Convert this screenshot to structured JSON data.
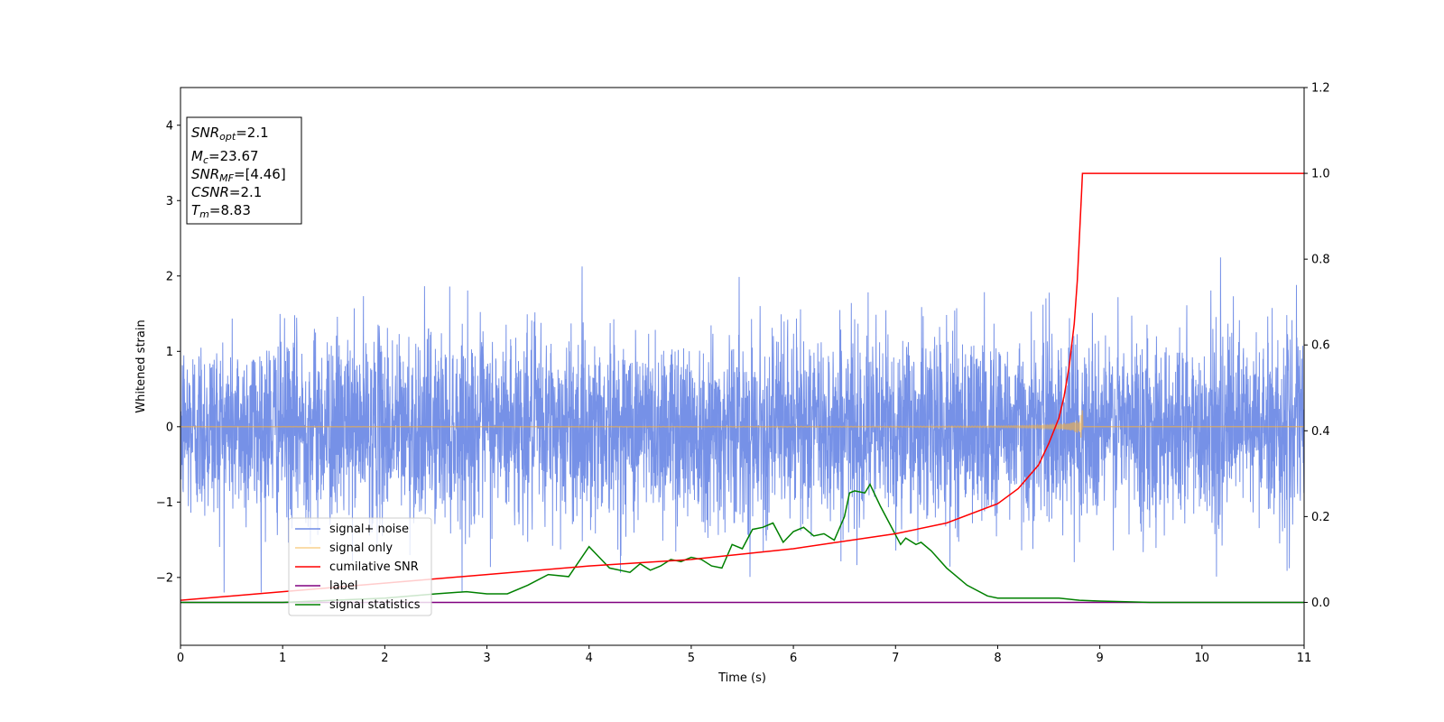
{
  "chart_data": {
    "type": "line",
    "xlabel": "Time (s)",
    "ylabel": "Whitened strain",
    "xlim": [
      0,
      11
    ],
    "ylim": [
      -2.9,
      4.5
    ],
    "y2lim": [
      -0.1,
      1.2
    ],
    "x_ticks": [
      0,
      1,
      2,
      3,
      4,
      5,
      6,
      7,
      8,
      9,
      10,
      11
    ],
    "y_ticks": [
      -2,
      -1,
      0,
      1,
      2,
      3,
      4
    ],
    "y2_ticks": [
      0.0,
      0.2,
      0.4,
      0.6,
      0.8,
      1.0,
      1.2
    ],
    "x_tick_labels": [
      "0",
      "1",
      "2",
      "3",
      "4",
      "5",
      "6",
      "7",
      "8",
      "9",
      "10",
      "11"
    ],
    "y_tick_labels": [
      "−2",
      "−1",
      "0",
      "1",
      "2",
      "3",
      "4"
    ],
    "y2_tick_labels": [
      "0.0",
      "0.2",
      "0.4",
      "0.6",
      "0.8",
      "1.0",
      "1.2"
    ],
    "grid": false,
    "legend_position": "lower-left",
    "colors": {
      "noise": "#6f8be6",
      "signal": "#f5b041",
      "cumulative": "#ff0000",
      "label": "#800080",
      "statistics": "#008000"
    },
    "annotation": {
      "snr_opt": {
        "sym": "SNR",
        "sub": "opt",
        "value": "=2.1"
      },
      "mc": {
        "sym": "M",
        "sub": "c",
        "value": "=23.67"
      },
      "snr_mf": {
        "sym": "SNR",
        "sub": "MF",
        "value": "=[4.46]"
      },
      "csnr": {
        "sym": "CSNR",
        "sub": "",
        "value": "=2.1"
      },
      "tm": {
        "sym": "T",
        "sub": "m",
        "value": "=8.83"
      }
    },
    "series": [
      {
        "name": "signal+ noise",
        "axis": "left",
        "description_range": [
          -2.2,
          2.25
        ],
        "std": 0.62
      },
      {
        "name": "signal only",
        "axis": "left",
        "merger_time": 8.83,
        "peak_amplitude": 0.28
      },
      {
        "name": "cumilative SNR",
        "axis": "right",
        "x": [
          0,
          1,
          2,
          3,
          4,
          5,
          6,
          7,
          7.5,
          8,
          8.2,
          8.4,
          8.5,
          8.6,
          8.65,
          8.7,
          8.75,
          8.78,
          8.8,
          8.82,
          8.83,
          8.84,
          11
        ],
        "y": [
          0.005,
          0.025,
          0.045,
          0.065,
          0.085,
          0.1,
          0.125,
          0.16,
          0.185,
          0.23,
          0.265,
          0.32,
          0.37,
          0.43,
          0.48,
          0.55,
          0.65,
          0.75,
          0.85,
          0.95,
          1.0,
          1.0,
          1.0
        ]
      },
      {
        "name": "label",
        "axis": "right",
        "x": [
          0,
          11
        ],
        "y": [
          0,
          0
        ]
      },
      {
        "name": "signal statistics",
        "axis": "right",
        "x": [
          0,
          0.5,
          1,
          1.5,
          2,
          2.5,
          2.8,
          3.0,
          3.2,
          3.4,
          3.6,
          3.8,
          3.9,
          4.0,
          4.1,
          4.2,
          4.4,
          4.5,
          4.6,
          4.7,
          4.8,
          4.9,
          5.0,
          5.1,
          5.2,
          5.3,
          5.4,
          5.5,
          5.6,
          5.7,
          5.8,
          5.9,
          6.0,
          6.1,
          6.2,
          6.3,
          6.4,
          6.5,
          6.55,
          6.6,
          6.7,
          6.75,
          6.85,
          6.95,
          7.05,
          7.1,
          7.2,
          7.25,
          7.35,
          7.5,
          7.7,
          7.9,
          8.0,
          8.2,
          8.4,
          8.6,
          8.8,
          9.0,
          9.5,
          10,
          11
        ],
        "y": [
          0.0,
          0.0,
          0.0,
          0.005,
          0.01,
          0.02,
          0.025,
          0.02,
          0.02,
          0.04,
          0.065,
          0.06,
          0.095,
          0.13,
          0.105,
          0.08,
          0.07,
          0.09,
          0.075,
          0.085,
          0.1,
          0.095,
          0.105,
          0.1,
          0.085,
          0.08,
          0.135,
          0.125,
          0.17,
          0.175,
          0.185,
          0.14,
          0.165,
          0.175,
          0.155,
          0.16,
          0.145,
          0.2,
          0.255,
          0.26,
          0.255,
          0.275,
          0.225,
          0.18,
          0.135,
          0.15,
          0.135,
          0.14,
          0.12,
          0.08,
          0.04,
          0.015,
          0.01,
          0.01,
          0.01,
          0.01,
          0.005,
          0.003,
          0.0,
          0.0,
          0.0
        ]
      }
    ]
  }
}
